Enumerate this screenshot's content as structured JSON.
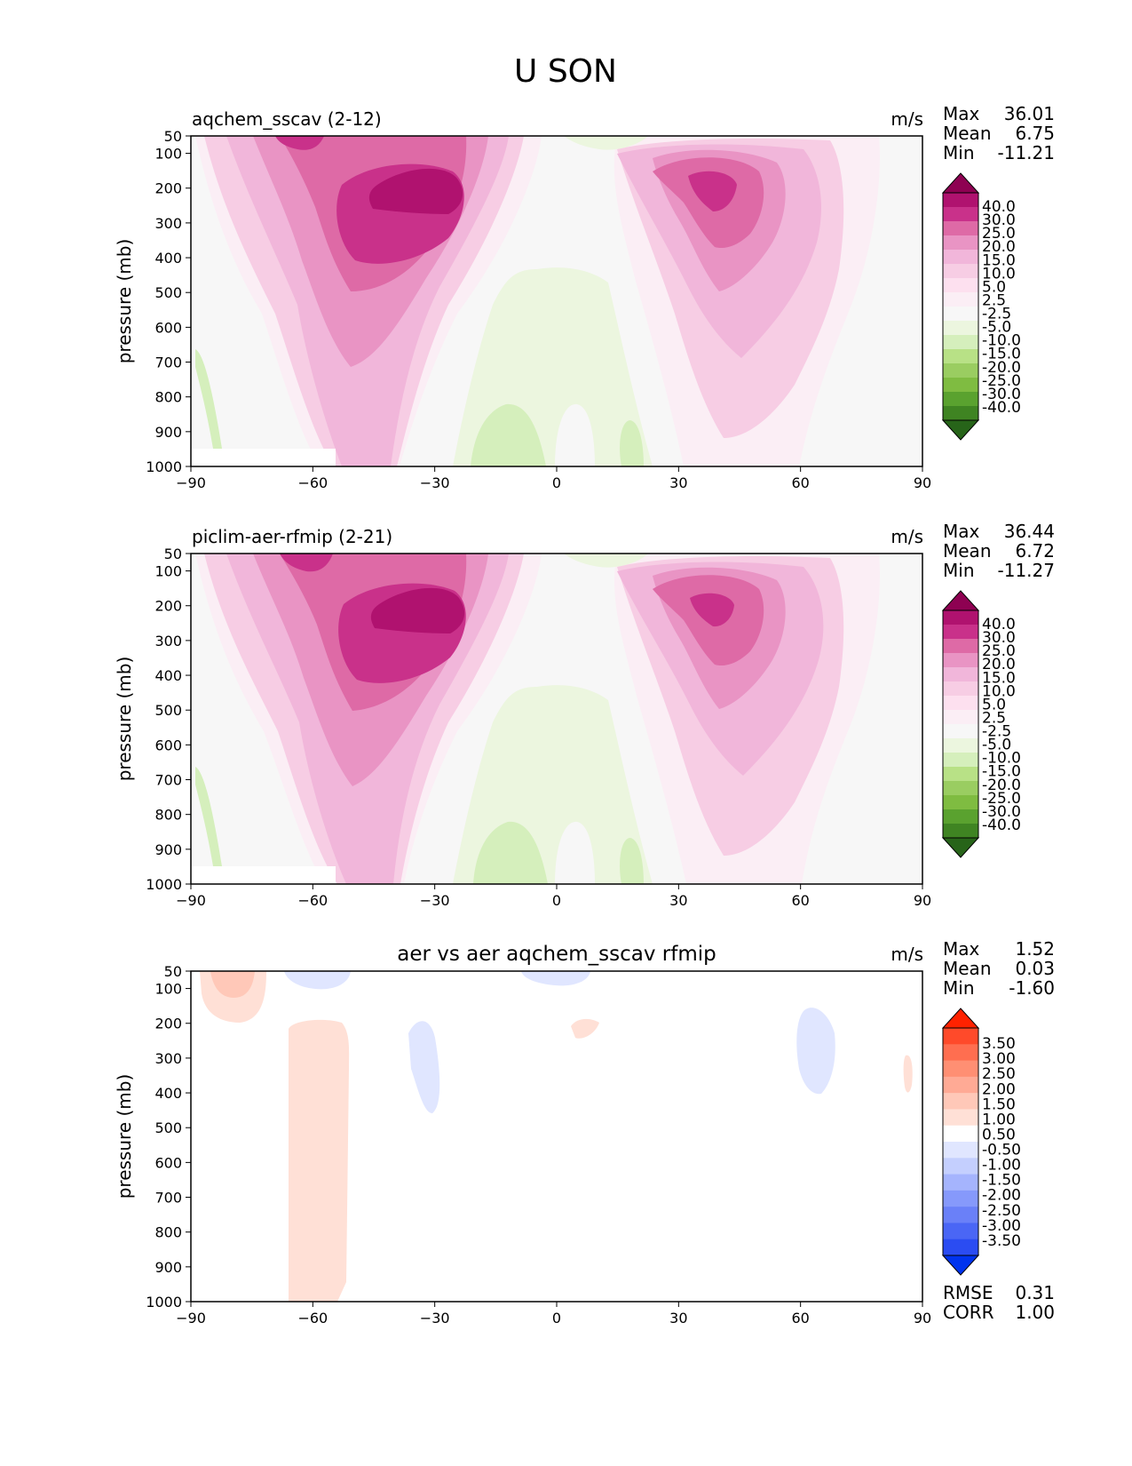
{
  "figure": {
    "title": "U SON"
  },
  "panels": [
    {
      "id": "test",
      "left_title": "aqchem_sscav (2-12)",
      "center_title": "",
      "units": "m/s",
      "stats": [
        {
          "label": "Max",
          "value": "36.01"
        },
        {
          "label": "Mean",
          "value": "6.75"
        },
        {
          "label": "Min",
          "value": "-11.21"
        }
      ],
      "colorbar_labels": [
        "40.0",
        "30.0",
        "25.0",
        "20.0",
        "15.0",
        "10.0",
        "5.0",
        "2.5",
        "-2.5",
        "-5.0",
        "-10.0",
        "-15.0",
        "-20.0",
        "-25.0",
        "-30.0",
        "-40.0"
      ]
    },
    {
      "id": "reference",
      "left_title": "piclim-aer-rfmip (2-21)",
      "center_title": "",
      "units": "m/s",
      "stats": [
        {
          "label": "Max",
          "value": "36.44"
        },
        {
          "label": "Mean",
          "value": "6.72"
        },
        {
          "label": "Min",
          "value": "-11.27"
        }
      ],
      "colorbar_labels": [
        "40.0",
        "30.0",
        "25.0",
        "20.0",
        "15.0",
        "10.0",
        "5.0",
        "2.5",
        "-2.5",
        "-5.0",
        "-10.0",
        "-15.0",
        "-20.0",
        "-25.0",
        "-30.0",
        "-40.0"
      ]
    },
    {
      "id": "difference",
      "left_title": "",
      "center_title": "aer vs aer aqchem_sscav rfmip",
      "units": "m/s",
      "stats": [
        {
          "label": "Max",
          "value": "1.52"
        },
        {
          "label": "Mean",
          "value": "0.03"
        },
        {
          "label": "Min",
          "value": "-1.60"
        }
      ],
      "extra_stats": [
        {
          "label": "RMSE",
          "value": "0.31"
        },
        {
          "label": "CORR",
          "value": "1.00"
        }
      ],
      "colorbar_labels": [
        "3.50",
        "3.00",
        "2.50",
        "2.00",
        "1.50",
        "1.00",
        "0.50",
        "-0.50",
        "-1.00",
        "-1.50",
        "-2.00",
        "-2.50",
        "-3.00",
        "-3.50"
      ]
    }
  ],
  "chart_data": {
    "type": "contour",
    "xlim": [
      -90,
      90
    ],
    "ylim": [
      1000,
      50
    ],
    "xticks": [
      -90,
      -60,
      -30,
      0,
      30,
      60,
      90
    ],
    "xtick_labels": [
      "−90",
      "−60",
      "−30",
      "0",
      "30",
      "60",
      "90"
    ],
    "yticks": [
      50,
      100,
      200,
      300,
      400,
      500,
      600,
      700,
      800,
      900,
      1000
    ],
    "ytick_labels": [
      "50",
      "100",
      "200",
      "300",
      "400",
      "500",
      "600",
      "700",
      "800",
      "900",
      "1000"
    ],
    "ylabel": "pressure (mb)",
    "palette_field": [
      "#f7f7f7",
      "#fde0ef",
      "#f1b6da",
      "#e994c4",
      "#de6aa6",
      "#c9318a",
      "#b0126f",
      "#8e0152",
      "#e6f5d0",
      "#b8e186",
      "#7fbc41"
    ],
    "palette_field_bar": [
      "#8e0152",
      "#b0126f",
      "#c9318a",
      "#de6aa6",
      "#e994c4",
      "#f1b6da",
      "#f7cde4",
      "#fde0ef",
      "#fbeef5",
      "#f7f7f7",
      "#ecf6df",
      "#d5efbc",
      "#b8e186",
      "#9acd61",
      "#7fbc41",
      "#5aa22f",
      "#3f8422",
      "#276419"
    ],
    "palette_diff_bar": [
      "#ff2200",
      "#ff4a2a",
      "#ff6e50",
      "#ff8f73",
      "#ffaa95",
      "#ffc8b8",
      "#ffe0d6",
      "#ffffff",
      "#e0e6ff",
      "#c4cffe",
      "#a5b4fd",
      "#8699fb",
      "#6a80f8",
      "#4a66f5",
      "#2b4cf2",
      "#0033ee"
    ]
  }
}
